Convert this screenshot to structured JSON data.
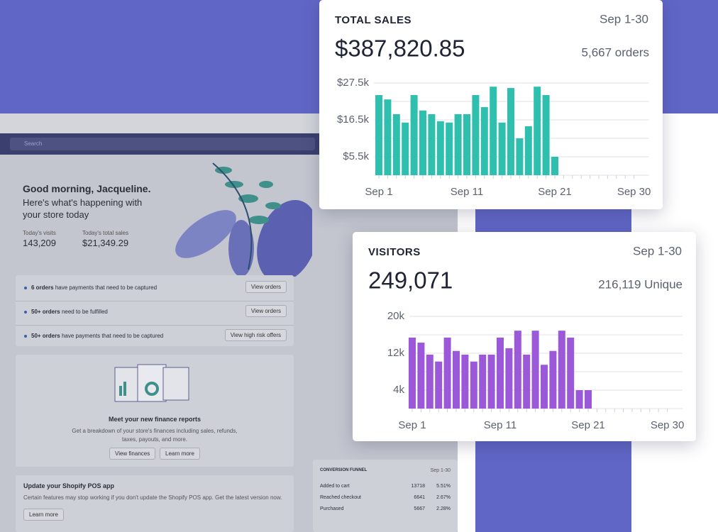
{
  "chart_data": [
    {
      "type": "bar",
      "title": "TOTAL SALES",
      "subtitle": "Sep 1-30",
      "total": "$387,820.85",
      "detail": "5,667 orders",
      "color": "#2fbfae",
      "categories": [
        "Sep 1",
        null,
        null,
        null,
        null,
        null,
        null,
        null,
        null,
        null,
        "Sep 11",
        null,
        null,
        null,
        null,
        null,
        null,
        null,
        null,
        null,
        "Sep 21",
        null,
        null,
        null,
        null,
        null,
        null,
        null,
        null,
        "Sep 30"
      ],
      "values": [
        23900,
        22600,
        18200,
        15700,
        23900,
        19300,
        18200,
        16100,
        15700,
        18200,
        18200,
        23900,
        20300,
        26400,
        15700,
        26000,
        11000,
        14600,
        26400,
        23900,
        5500,
        null,
        null,
        null,
        null,
        null,
        null,
        null,
        null,
        null
      ],
      "ylim": [
        0,
        27500
      ],
      "yticks": [
        {
          "value": 5500,
          "label": "$5.5k"
        },
        {
          "value": 16500,
          "label": "$16.5k"
        },
        {
          "value": 27500,
          "label": "$27.5k"
        }
      ],
      "minor_grid": [
        0,
        11000,
        22000
      ],
      "grid": true
    },
    {
      "type": "bar",
      "title": "VISITORS",
      "subtitle": "Sep 1-30",
      "total": "249,071",
      "detail": "216,119 Unique",
      "color": "#9b59d9",
      "categories": [
        "Sep 1",
        null,
        null,
        null,
        null,
        null,
        null,
        null,
        null,
        null,
        "Sep 11",
        null,
        null,
        null,
        null,
        null,
        null,
        null,
        null,
        null,
        "Sep 21",
        null,
        null,
        null,
        null,
        null,
        null,
        null,
        null,
        "Sep 30"
      ],
      "values": [
        15400,
        14300,
        11700,
        10200,
        15400,
        12500,
        11700,
        10200,
        11700,
        11700,
        15400,
        13100,
        16900,
        11700,
        16900,
        9500,
        12500,
        16900,
        15400,
        4000,
        4000,
        null,
        null,
        null,
        null,
        null,
        null,
        null,
        null,
        null
      ],
      "ylim": [
        0,
        20000
      ],
      "yticks": [
        {
          "value": 4000,
          "label": "4k"
        },
        {
          "value": 12000,
          "label": "12k"
        },
        {
          "value": 20000,
          "label": "20k"
        }
      ],
      "minor_grid": [
        0,
        8000,
        16000
      ],
      "grid": true
    }
  ],
  "dashboard": {
    "search": "Search",
    "greeting": "Good morning, Jacqueline.",
    "subtitle": "Here's what's happening with your store today",
    "visits_label": "Today's visits",
    "visits": "143,209",
    "sales_label": "Today's total sales",
    "sales": "$21,349.29",
    "alerts": [
      {
        "bold": "6 orders",
        "text": "have payments that need to be captured",
        "button": "View orders"
      },
      {
        "bold": "50+ orders",
        "text": "need to be fulfilled",
        "button": "View orders"
      },
      {
        "bold": "50+ orders",
        "text": "have payments that need to be captured",
        "button": "View high risk offers"
      }
    ],
    "finance": {
      "title": "Meet your new finance reports",
      "text": "Get a breakdown of your store's finances including sales, refunds, taxes, payouts, and more.",
      "buttons": [
        "View finances",
        "Learn more"
      ]
    },
    "pos": {
      "title": "Update your Shopify POS app",
      "text": "Certain features may stop working if you don't update the Shopify POS app. Get the latest version now.",
      "button": "Learn more"
    },
    "funnel": {
      "title": "CONVERSION FUNNEL",
      "period": "Sep 1-30",
      "rows": [
        [
          "Added to cart",
          "13718",
          "5.51%"
        ],
        [
          "Reached checkout",
          "6641",
          "2.67%"
        ],
        [
          "Purchased",
          "5667",
          "2.28%"
        ]
      ]
    }
  }
}
